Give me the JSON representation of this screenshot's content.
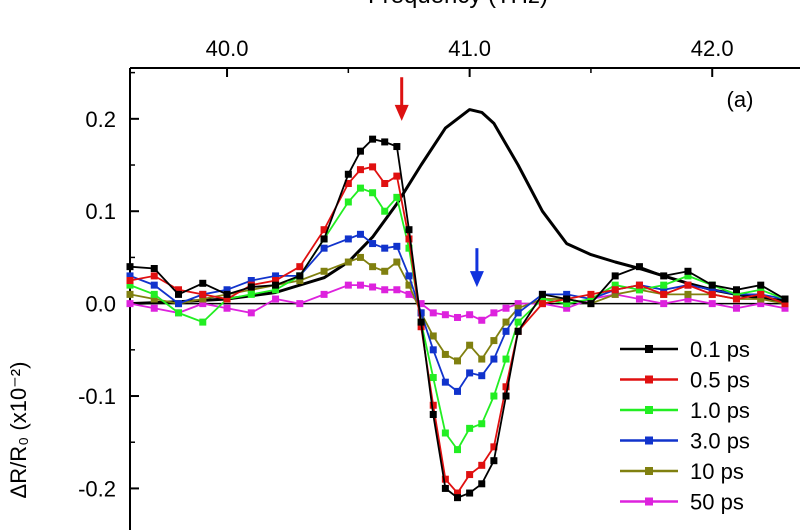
{
  "chart_data": {
    "type": "line",
    "xlabel_top": "Frequency (THz)",
    "ylabel": "ΔR/R₀ (x10⁻²)",
    "panel_label": "(a)",
    "xlim": [
      39.6,
      42.3
    ],
    "ylim": [
      -0.245,
      0.255
    ],
    "x_ticks": [
      40.0,
      41.0,
      42.0
    ],
    "x_tick_labels": [
      "40.0",
      "41.0",
      "42.0"
    ],
    "y_ticks": [
      -0.2,
      -0.1,
      0.0,
      0.1,
      0.2
    ],
    "y_tick_labels": [
      "-0.2",
      "-0.1",
      "0.0",
      "0.1",
      "0.2"
    ],
    "zero_line": true,
    "legend_position": "bottom-right",
    "arrows": [
      {
        "x": 40.72,
        "color": "#dd1111",
        "y_from": 0.245,
        "y_to": 0.2
      },
      {
        "x": 41.03,
        "color": "#1133dd",
        "y_from": 0.06,
        "y_to": 0.02
      }
    ],
    "reference_curve": {
      "color": "#000000",
      "x": [
        39.6,
        39.8,
        40.0,
        40.2,
        40.4,
        40.5,
        40.6,
        40.7,
        40.8,
        40.9,
        41.0,
        41.05,
        41.1,
        41.2,
        41.3,
        41.4,
        41.5,
        41.6,
        41.7,
        41.8,
        41.9,
        42.0,
        42.1,
        42.2,
        42.3
      ],
      "y": [
        0.0,
        0.002,
        0.005,
        0.012,
        0.028,
        0.045,
        0.072,
        0.108,
        0.15,
        0.19,
        0.21,
        0.207,
        0.195,
        0.15,
        0.1,
        0.065,
        0.053,
        0.045,
        0.038,
        0.03,
        0.022,
        0.015,
        0.01,
        0.006,
        0.003
      ]
    },
    "x": [
      39.6,
      39.7,
      39.8,
      39.9,
      40.0,
      40.1,
      40.2,
      40.3,
      40.4,
      40.5,
      40.55,
      40.6,
      40.65,
      40.7,
      40.75,
      40.8,
      40.85,
      40.9,
      40.95,
      41.0,
      41.05,
      41.1,
      41.15,
      41.2,
      41.3,
      41.4,
      41.5,
      41.6,
      41.7,
      41.8,
      41.9,
      42.0,
      42.1,
      42.2,
      42.3
    ],
    "series": [
      {
        "name": "0.1 ps",
        "color": "#000000",
        "values": [
          0.04,
          0.038,
          0.01,
          0.022,
          0.01,
          0.018,
          0.02,
          0.03,
          0.07,
          0.14,
          0.165,
          0.178,
          0.175,
          0.17,
          0.08,
          -0.02,
          -0.12,
          -0.2,
          -0.21,
          -0.205,
          -0.195,
          -0.17,
          -0.1,
          -0.03,
          0.01,
          0.005,
          0.0,
          0.03,
          0.04,
          0.03,
          0.035,
          0.02,
          0.015,
          0.02,
          0.005
        ]
      },
      {
        "name": "0.5 ps",
        "color": "#e01010",
        "values": [
          0.025,
          0.03,
          0.015,
          0.01,
          0.005,
          0.02,
          0.025,
          0.04,
          0.08,
          0.13,
          0.145,
          0.148,
          0.13,
          0.138,
          0.07,
          -0.025,
          -0.11,
          -0.19,
          -0.205,
          -0.185,
          -0.175,
          -0.155,
          -0.09,
          -0.03,
          0.0,
          0.005,
          0.01,
          0.015,
          0.02,
          0.01,
          0.02,
          0.01,
          0.005,
          0.01,
          0.0
        ]
      },
      {
        "name": "1.0 ps",
        "color": "#22ee22",
        "values": [
          0.02,
          0.01,
          -0.01,
          -0.02,
          0.005,
          0.01,
          0.015,
          0.03,
          0.07,
          0.11,
          0.125,
          0.12,
          0.1,
          0.115,
          0.06,
          -0.02,
          -0.08,
          -0.14,
          -0.158,
          -0.135,
          -0.13,
          -0.1,
          -0.06,
          -0.02,
          0.005,
          0.0,
          0.005,
          0.02,
          0.015,
          0.02,
          0.03,
          0.02,
          0.01,
          0.015,
          0.005
        ]
      },
      {
        "name": "3.0 ps",
        "color": "#1133cc",
        "values": [
          0.03,
          0.02,
          0.0,
          0.01,
          0.015,
          0.025,
          0.03,
          0.03,
          0.06,
          0.07,
          0.075,
          0.065,
          0.06,
          0.062,
          0.03,
          -0.01,
          -0.05,
          -0.085,
          -0.095,
          -0.075,
          -0.078,
          -0.06,
          -0.03,
          -0.01,
          0.01,
          0.01,
          0.005,
          0.015,
          0.02,
          0.015,
          0.02,
          0.015,
          0.01,
          0.01,
          0.005
        ]
      },
      {
        "name": "10 ps",
        "color": "#808010",
        "values": [
          0.01,
          0.005,
          0.0,
          0.005,
          0.01,
          0.015,
          0.02,
          0.025,
          0.035,
          0.045,
          0.05,
          0.04,
          0.035,
          0.045,
          0.02,
          -0.01,
          -0.035,
          -0.055,
          -0.062,
          -0.045,
          -0.06,
          -0.04,
          -0.02,
          -0.005,
          0.005,
          0.005,
          0.0,
          0.01,
          0.015,
          0.01,
          0.01,
          0.01,
          0.005,
          0.005,
          0.0
        ]
      },
      {
        "name": "50 ps",
        "color": "#dd22dd",
        "values": [
          0.0,
          -0.005,
          -0.01,
          0.0,
          -0.005,
          -0.01,
          0.005,
          0.0,
          0.01,
          0.02,
          0.02,
          0.018,
          0.015,
          0.015,
          0.01,
          0.0,
          -0.01,
          -0.012,
          -0.015,
          -0.012,
          -0.018,
          -0.01,
          -0.005,
          0.0,
          0.0,
          -0.005,
          0.005,
          0.01,
          0.005,
          0.0,
          0.005,
          0.0,
          -0.005,
          0.0,
          -0.005
        ]
      }
    ]
  }
}
